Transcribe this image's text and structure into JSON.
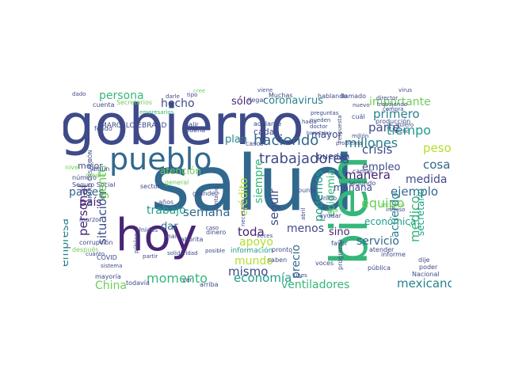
{
  "word_cloud": {
    "words": [
      {
        "id": "salud",
        "text": "salud",
        "color": "#31688e"
      },
      {
        "id": "gobierno",
        "text": "gobierno",
        "color": "#3e4a89"
      },
      {
        "id": "hoy",
        "text": "hoy",
        "color": "#482475"
      },
      {
        "id": "bien",
        "text": "bien",
        "color": "#35b779"
      },
      {
        "id": "pueblo",
        "text": "pueblo",
        "color": "#31688e"
      },
      {
        "id": "trabajadores",
        "text": "trabajadores",
        "color": "#3e4a89"
      },
      {
        "id": "haciendo",
        "text": "haciendo",
        "color": "#31688e"
      },
      {
        "id": "millones",
        "text": "millones",
        "color": "#26828e"
      },
      {
        "id": "coronavirus",
        "text": "coronavirus",
        "color": "#26828e"
      },
      {
        "id": "importante",
        "text": "importante",
        "color": "#6ece58"
      },
      {
        "id": "persona",
        "text": "persona",
        "color": "#35b779"
      },
      {
        "id": "hecho",
        "text": "hecho",
        "color": "#3e4a89"
      },
      {
        "id": "solo",
        "text": "sólo",
        "color": "#482475"
      },
      {
        "id": "primero",
        "text": "primero",
        "color": "#26828e"
      },
      {
        "id": "tiempo",
        "text": "tiempo",
        "color": "#1f9e89"
      },
      {
        "id": "peso",
        "text": "peso",
        "color": "#b5de2b"
      },
      {
        "id": "parte",
        "text": "parte",
        "color": "#3e4a89"
      },
      {
        "id": "plan",
        "text": "plan",
        "color": "#26828e"
      },
      {
        "id": "crisis",
        "text": "crisis",
        "color": "#3e4a89"
      },
      {
        "id": "cosa",
        "text": "cosa",
        "color": "#31688e"
      },
      {
        "id": "medida",
        "text": "medida",
        "color": "#3e4a89"
      },
      {
        "id": "empleo",
        "text": "empleo",
        "color": "#3e4a89"
      },
      {
        "id": "ejemplo",
        "text": "ejemplo",
        "color": "#31688e"
      },
      {
        "id": "manera",
        "text": "manera",
        "color": "#482475"
      },
      {
        "id": "equipo",
        "text": "equipo",
        "color": "#6ece58"
      },
      {
        "id": "acuerdo",
        "text": "acuerdo",
        "color": "#26828e"
      },
      {
        "id": "medico",
        "text": "médico",
        "color": "#35b779"
      },
      {
        "id": "servicio",
        "text": "servicio",
        "color": "#31688e"
      },
      {
        "id": "mexicano",
        "text": "mexicano",
        "color": "#26828e"
      },
      {
        "id": "ventiladores",
        "text": "ventiladores",
        "color": "#35b779"
      },
      {
        "id": "economia",
        "text": "economía",
        "color": "#1f9e89"
      },
      {
        "id": "mismo",
        "text": "mismo",
        "color": "#3e4a89"
      },
      {
        "id": "mundo",
        "text": "mundo",
        "color": "#b5de2b"
      },
      {
        "id": "apoyo",
        "text": "apoyo",
        "color": "#b5de2b"
      },
      {
        "id": "toda",
        "text": "toda",
        "color": "#482475"
      },
      {
        "id": "menos",
        "text": "menos",
        "color": "#3e4a89"
      },
      {
        "id": "sino",
        "text": "sino",
        "color": "#482475"
      },
      {
        "id": "momento",
        "text": "momento",
        "color": "#35b779"
      },
      {
        "id": "china",
        "text": "China",
        "color": "#6ece58"
      },
      {
        "id": "trabajo",
        "text": "trabajo",
        "color": "#1f9e89"
      },
      {
        "id": "semana",
        "text": "semana",
        "color": "#31688e"
      },
      {
        "id": "dar",
        "text": "dar",
        "color": "#31688e"
      },
      {
        "id": "atencion",
        "text": "atención",
        "color": "#6ece58"
      },
      {
        "id": "paises",
        "text": "países",
        "color": "#31688e"
      },
      {
        "id": "pais",
        "text": "país",
        "color": "#482475"
      },
      {
        "id": "mejor",
        "text": "mejor",
        "color": "#3e4a89"
      },
      {
        "id": "personal",
        "text": "personal",
        "color": "#482475"
      },
      {
        "id": "situacion",
        "text": "situación",
        "color": "#3e4a89"
      },
      {
        "id": "gente",
        "text": "gente",
        "color": "#6ece58"
      },
      {
        "id": "empresa",
        "text": "empresa",
        "color": "#26828e"
      },
      {
        "id": "credito",
        "text": "crédito",
        "color": "#b5de2b"
      },
      {
        "id": "siempre",
        "text": "siempre",
        "color": "#35b779"
      },
      {
        "id": "seguir",
        "text": "seguir",
        "color": "#3e4a89"
      },
      {
        "id": "precio",
        "text": "precio",
        "color": "#31688e"
      },
      {
        "id": "podemos",
        "text": "podemos",
        "color": "#1f9e89"
      },
      {
        "id": "epidemia",
        "text": "epidemia",
        "color": "#35b779"
      },
      {
        "id": "manana",
        "text": "mañana",
        "color": "#3e4a89"
      },
      {
        "id": "mayor",
        "text": "mayor",
        "color": "#3e4a89"
      },
      {
        "id": "cada",
        "text": "cada",
        "color": "#3e4a89"
      },
      {
        "id": "puedan",
        "text": "puedan",
        "color": "#3e4a89"
      },
      {
        "id": "economica",
        "text": "económica",
        "color": "#1f9e89"
      },
      {
        "id": "secretario",
        "text": "secretario",
        "color": "#1f9e89"
      },
      {
        "id": "marcelo",
        "text": "MARCELO EBRARD",
        "color": "#3e4a89"
      },
      {
        "id": "nivel",
        "text": "nivel",
        "color": "#6ece58"
      },
      {
        "id": "algun",
        "text": "algún",
        "color": "#3e4a89"
      },
      {
        "id": "seguro-social",
        "text": "Seguro Social",
        "color": "#3e4a89"
      },
      {
        "id": "marzo",
        "text": "marzo",
        "color": "#3e4a89"
      },
      {
        "id": "corrupcion",
        "text": "corrupción",
        "color": "#3e4a89"
      },
      {
        "id": "informacion",
        "text": "información",
        "color": "#1f9e89"
      },
      {
        "id": "dinero",
        "text": "dinero",
        "color": "#3e4a89"
      },
      {
        "id": "general",
        "text": "general",
        "color": "#6ece58"
      },
      {
        "id": "grande",
        "text": "grande",
        "color": "#3e4a89"
      },
      {
        "id": "hablando",
        "text": "hablando",
        "color": "#3e4a89"
      },
      {
        "id": "llamado",
        "text": "llamado",
        "color": "#3e4a89"
      },
      {
        "id": "muchas",
        "text": "Muchas",
        "color": "#3e4a89"
      },
      {
        "id": "llegar",
        "text": "llegar",
        "color": "#3e4a89"
      },
      {
        "id": "produccion",
        "text": "producción",
        "color": "#3e4a89"
      },
      {
        "id": "trabajando",
        "text": "trabajando",
        "color": "#3e4a89"
      },
      {
        "id": "problema",
        "text": "problema",
        "color": "#3e4a89"
      },
      {
        "id": "millon",
        "text": "millón",
        "color": "#3e4a89"
      },
      {
        "id": "empresarios",
        "text": "empresarios",
        "color": "#35b779"
      },
      {
        "id": "pueden",
        "text": "pueden",
        "color": "#3e4a89"
      },
      {
        "id": "doctor",
        "text": "doctor",
        "color": "#3e4a89"
      },
      {
        "id": "hospitales",
        "text": "hospitales",
        "color": "#3e4a89"
      },
      {
        "id": "respuesta",
        "text": "respuesta",
        "color": "#3e4a89"
      },
      {
        "id": "cual",
        "text": "cuál",
        "color": "#3e4a89"
      },
      {
        "id": "segundo",
        "text": "segundo",
        "color": "#3e4a89"
      },
      {
        "id": "camas",
        "text": "camas",
        "color": "#3e4a89"
      },
      {
        "id": "unido",
        "text": "Unido",
        "color": "#3e4a89"
      },
      {
        "id": "punto",
        "text": "punto",
        "color": "#3e4a89"
      },
      {
        "id": "ayudar",
        "text": "ayudar",
        "color": "#3e4a89"
      },
      {
        "id": "favor",
        "text": "favor",
        "color": "#3e4a89"
      },
      {
        "id": "dije",
        "text": "dije",
        "color": "#3e4a89"
      },
      {
        "id": "poder",
        "text": "poder",
        "color": "#3e4a89"
      },
      {
        "id": "publica",
        "text": "pública",
        "color": "#3e4a89"
      },
      {
        "id": "nacional",
        "text": "Nacional",
        "color": "#3e4a89"
      },
      {
        "id": "informe",
        "text": "informe",
        "color": "#3e4a89"
      },
      {
        "id": "atender",
        "text": "atender",
        "color": "#3e4a89"
      },
      {
        "id": "programa",
        "text": "programa",
        "color": "#3e4a89"
      },
      {
        "id": "voces",
        "text": "voces",
        "color": "#3e4a89"
      },
      {
        "id": "saben",
        "text": "saben",
        "color": "#3e4a89"
      },
      {
        "id": "pronto",
        "text": "pronto",
        "color": "#3e4a89"
      },
      {
        "id": "adelante",
        "text": "adelante",
        "color": "#3e4a89"
      },
      {
        "id": "casos",
        "text": "casos",
        "color": "#3e4a89"
      },
      {
        "id": "arriba",
        "text": "arriba",
        "color": "#3e4a89"
      },
      {
        "id": "ver",
        "text": "ver",
        "color": "#3e4a89"
      },
      {
        "id": "todavia",
        "text": "todavía",
        "color": "#3e4a89"
      },
      {
        "id": "mayoria",
        "text": "mayoría",
        "color": "#3e4a89"
      },
      {
        "id": "unidos",
        "text": "Unidos",
        "color": "#3e4a89"
      },
      {
        "id": "ahorita",
        "text": "ahorita",
        "color": "#3e4a89"
      },
      {
        "id": "covid",
        "text": "COVID",
        "color": "#3e4a89"
      },
      {
        "id": "despues",
        "text": "después",
        "color": "#6ece58"
      },
      {
        "id": "ebrard-casaubon",
        "text": "EBRARD CASAUBÓN",
        "color": "#3e4a89"
      },
      {
        "id": "numero",
        "text": "número",
        "color": "#3e4a89"
      },
      {
        "id": "medio",
        "text": "medio",
        "color": "#6ece58"
      },
      {
        "id": "fondo",
        "text": "fondo",
        "color": "#3e4a89"
      },
      {
        "id": "cuenta",
        "text": "cuenta",
        "color": "#3e4a89"
      },
      {
        "id": "secretarios",
        "text": "Secretarios",
        "color": "#6ece58"
      },
      {
        "id": "sector",
        "text": "sector",
        "color": "#3e4a89"
      },
      {
        "id": "anos",
        "text": "años",
        "color": "#3e4a89"
      },
      {
        "id": "mal",
        "text": "mal",
        "color": "#3e4a89"
      },
      {
        "id": "salir",
        "text": "salir",
        "color": "#3e4a89"
      },
      {
        "id": "buena",
        "text": "buena",
        "color": "#3e4a89"
      },
      {
        "id": "dado",
        "text": "dado",
        "color": "#3e4a89"
      },
      {
        "id": "darle",
        "text": "darle",
        "color": "#3e4a89"
      },
      {
        "id": "viene",
        "text": "viene",
        "color": "#3e4a89"
      },
      {
        "id": "nuevo",
        "text": "nuevo",
        "color": "#3e4a89"
      },
      {
        "id": "director",
        "text": "director",
        "color": "#3e4a89"
      },
      {
        "id": "quiero",
        "text": "quiero",
        "color": "#3e4a89"
      },
      {
        "id": "dicho",
        "text": "dicho",
        "color": "#3e4a89"
      },
      {
        "id": "virus",
        "text": "virus",
        "color": "#3e4a89"
      },
      {
        "id": "preguntas",
        "text": "preguntas",
        "color": "#3e4a89"
      },
      {
        "id": "hacia",
        "text": "hacia",
        "color": "#3e4a89"
      },
      {
        "id": "recursos",
        "text": "recursos",
        "color": "#6ece58"
      },
      {
        "id": "incluso",
        "text": "incluso",
        "color": "#3e4a89"
      },
      {
        "id": "vida",
        "text": "vida",
        "color": "#6ece58"
      },
      {
        "id": "lunes",
        "text": "lunes",
        "color": "#3e4a89"
      },
      {
        "id": "abril",
        "text": "abril",
        "color": "#3e4a89"
      },
      {
        "id": "solidaridad",
        "text": "solidaridad",
        "color": "#3e4a89"
      },
      {
        "id": "sistema",
        "text": "sistema",
        "color": "#3e4a89"
      },
      {
        "id": "partir",
        "text": "partir",
        "color": "#3e4a89"
      },
      {
        "id": "publico",
        "text": "público",
        "color": "#3e4a89"
      },
      {
        "id": "cuanto",
        "text": "cuanto",
        "color": "#3e4a89"
      },
      {
        "id": "tipo",
        "text": "tipo",
        "color": "#3e4a89"
      },
      {
        "id": "cree",
        "text": "cree",
        "color": "#6ece58"
      },
      {
        "id": "caso",
        "text": "caso",
        "color": "#3e4a89"
      },
      {
        "id": "posible",
        "text": "posible",
        "color": "#3e4a89"
      },
      {
        "id": "necesario",
        "text": "necesario",
        "color": "#3e4a89"
      },
      {
        "id": "contagio",
        "text": "contagio",
        "color": "#3e4a89"
      },
      {
        "id": "veces",
        "text": "veces",
        "color": "#3e4a89"
      },
      {
        "id": "compra",
        "text": "compra",
        "color": "#3e4a89"
      }
    ]
  }
}
